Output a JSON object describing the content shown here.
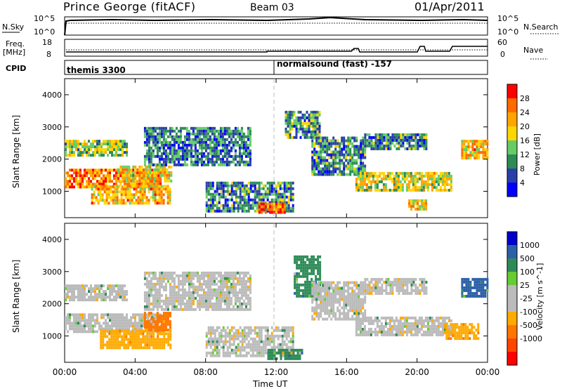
{
  "header": {
    "station": "Prince George (fitACF)",
    "beam": "Beam 03",
    "date": "01/Apr/2011"
  },
  "top_panel": {
    "left_label": "N.Sky",
    "left_ticks": [
      "10^5",
      "10^0"
    ],
    "right_label": "N.Search",
    "right_ticks": [
      "10^5",
      "10^0"
    ]
  },
  "freq_panel": {
    "left_label_line1": "Freq.",
    "left_label_line2": "[MHz]",
    "left_ticks": [
      "18",
      "8"
    ],
    "right_label": "Nave",
    "right_ticks": [
      "60",
      "0"
    ]
  },
  "cpid_panel": {
    "label": "CPID",
    "modes": [
      {
        "text": "themis 3300",
        "start_hour": 0
      },
      {
        "text": "normalsound (fast) -157",
        "start_hour": 12
      }
    ]
  },
  "colors": {
    "power_scale": [
      "#0000ff",
      "#2a3fa8",
      "#2e8b57",
      "#66cd66",
      "#ffd700",
      "#ffa500",
      "#ff6a00",
      "#ff0000"
    ],
    "velocity_scale": [
      "#0000cc",
      "#2b5fa8",
      "#2e8b57",
      "#66cc33",
      "#bbbbbb",
      "#bbbbbb",
      "#ffaa00",
      "#ff7700",
      "#ff4400",
      "#ff0000"
    ]
  },
  "chart_data": [
    {
      "type": "heatmap",
      "panel": "power",
      "ylabel": "Slant Range [km]",
      "yticks": [
        "4000",
        "3000",
        "2000",
        "1000"
      ],
      "ylim": [
        180,
        4500
      ],
      "xlim": [
        0,
        24
      ],
      "colorbar": {
        "label": "Power [dB]",
        "ticks": [
          "28",
          "24",
          "20",
          "16",
          "12",
          "8",
          "4"
        ],
        "range": [
          0,
          30
        ]
      },
      "echo_bands": [
        {
          "t0": 0.0,
          "t1": 5.5,
          "r0": 1150,
          "r1": 1700,
          "power": 22
        },
        {
          "t0": 0.0,
          "t1": 3.5,
          "r0": 2150,
          "r1": 2600,
          "power": 14
        },
        {
          "t0": 1.5,
          "t1": 6.0,
          "r0": 650,
          "r1": 1200,
          "power": 20
        },
        {
          "t0": 3.0,
          "t1": 6.0,
          "r0": 1350,
          "r1": 1800,
          "power": 18
        },
        {
          "t0": 4.5,
          "t1": 10.5,
          "r0": 1800,
          "r1": 3000,
          "power": 8
        },
        {
          "t0": 8.0,
          "t1": 13.0,
          "r0": 400,
          "r1": 1300,
          "power": 9
        },
        {
          "t0": 11.0,
          "t1": 12.5,
          "r0": 350,
          "r1": 650,
          "power": 24
        },
        {
          "t0": 12.5,
          "t1": 14.5,
          "r0": 2700,
          "r1": 3500,
          "power": 10
        },
        {
          "t0": 14.0,
          "t1": 17.0,
          "r0": 1500,
          "r1": 2700,
          "power": 9
        },
        {
          "t0": 16.5,
          "t1": 22.0,
          "r0": 1000,
          "r1": 1600,
          "power": 16
        },
        {
          "t0": 17.0,
          "t1": 20.5,
          "r0": 2300,
          "r1": 2800,
          "power": 9
        },
        {
          "t0": 19.5,
          "t1": 20.5,
          "r0": 450,
          "r1": 750,
          "power": 18
        },
        {
          "t0": 22.5,
          "t1": 24.0,
          "r0": 2000,
          "r1": 2600,
          "power": 20
        }
      ]
    },
    {
      "type": "heatmap",
      "panel": "velocity",
      "ylabel": "Slant Range [km]",
      "xlabel": "Time UT",
      "yticks": [
        "4000",
        "3000",
        "2000",
        "1000"
      ],
      "xticks": [
        "00:00",
        "04:00",
        "08:00",
        "12:00",
        "16:00",
        "20:00",
        "00:00"
      ],
      "ylim": [
        180,
        4500
      ],
      "xlim": [
        0,
        24
      ],
      "colorbar": {
        "label": "Velocity [m s^-1]",
        "ticks": [
          "1000",
          "500",
          "100",
          "25",
          "-25",
          "-100",
          "-500",
          "-1000"
        ],
        "range": [
          -1000,
          1000
        ]
      },
      "echo_bands": [
        {
          "t0": 0.0,
          "t1": 5.5,
          "r0": 1150,
          "r1": 1700,
          "velocity": 0
        },
        {
          "t0": 0.0,
          "t1": 3.5,
          "r0": 2150,
          "r1": 2600,
          "velocity": 0
        },
        {
          "t0": 2.0,
          "t1": 6.0,
          "r0": 650,
          "r1": 1200,
          "velocity": -200
        },
        {
          "t0": 4.5,
          "t1": 6.0,
          "r0": 1200,
          "r1": 1750,
          "velocity": -300
        },
        {
          "t0": 4.5,
          "t1": 10.5,
          "r0": 1800,
          "r1": 3000,
          "velocity": 0
        },
        {
          "t0": 8.0,
          "t1": 13.0,
          "r0": 400,
          "r1": 1300,
          "velocity": 0
        },
        {
          "t0": 11.5,
          "t1": 13.5,
          "r0": 300,
          "r1": 600,
          "velocity": 100
        },
        {
          "t0": 13.0,
          "t1": 14.5,
          "r0": 2200,
          "r1": 3500,
          "velocity": 150
        },
        {
          "t0": 14.0,
          "t1": 17.0,
          "r0": 1500,
          "r1": 2700,
          "velocity": 0
        },
        {
          "t0": 16.5,
          "t1": 22.0,
          "r0": 1000,
          "r1": 1600,
          "velocity": 0
        },
        {
          "t0": 17.0,
          "t1": 20.5,
          "r0": 2300,
          "r1": 2800,
          "velocity": 0
        },
        {
          "t0": 21.5,
          "t1": 23.5,
          "r0": 900,
          "r1": 1400,
          "velocity": -250
        },
        {
          "t0": 22.5,
          "t1": 24.0,
          "r0": 2200,
          "r1": 2800,
          "velocity": 200
        }
      ]
    }
  ]
}
